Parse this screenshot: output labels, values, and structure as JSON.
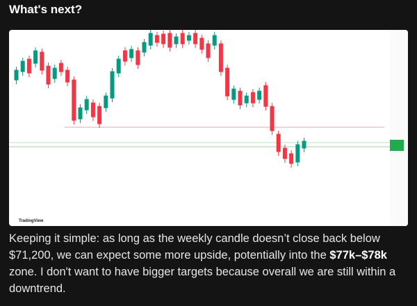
{
  "header": {
    "title": "What's next?"
  },
  "chart": {
    "watermark": "TradingView"
  },
  "body": {
    "text_before": "Keeping it simple: as long as the weekly candle doesn’t close back below $71,200, we can expect some more upside, potentially into the ",
    "highlight": "$77k–$78k",
    "text_after": " zone. I don't want to have bigger targets because overall we are still within a downtrend."
  }
}
